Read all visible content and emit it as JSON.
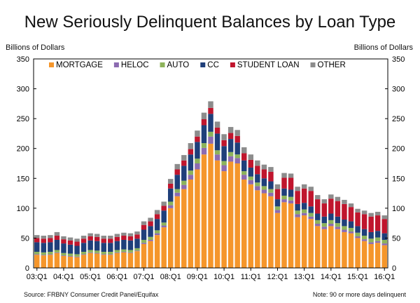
{
  "chart_data": {
    "type": "bar",
    "stacked": true,
    "title": "New Seriously Delinquent Balances by Loan Type",
    "ylabel_left": "Billions of Dollars",
    "ylabel_right": "Billions of Dollars",
    "ylim": [
      0,
      350
    ],
    "yticks": [
      0,
      50,
      100,
      150,
      200,
      250,
      300,
      350
    ],
    "grid": false,
    "legend_position": "top-left",
    "x_tick_labels": [
      "03:Q1",
      "04:Q1",
      "05:Q1",
      "06:Q1",
      "07:Q1",
      "08:Q1",
      "09:Q1",
      "10:Q1",
      "11:Q1",
      "12:Q1",
      "13:Q1",
      "14:Q1",
      "15:Q1",
      "16:Q1"
    ],
    "categories": [
      "03:Q1",
      "03:Q2",
      "03:Q3",
      "03:Q4",
      "04:Q1",
      "04:Q2",
      "04:Q3",
      "04:Q4",
      "05:Q1",
      "05:Q2",
      "05:Q3",
      "05:Q4",
      "06:Q1",
      "06:Q2",
      "06:Q3",
      "06:Q4",
      "07:Q1",
      "07:Q2",
      "07:Q3",
      "07:Q4",
      "08:Q1",
      "08:Q2",
      "08:Q3",
      "08:Q4",
      "09:Q1",
      "09:Q2",
      "09:Q3",
      "09:Q4",
      "10:Q1",
      "10:Q2",
      "10:Q3",
      "10:Q4",
      "11:Q1",
      "11:Q2",
      "11:Q3",
      "11:Q4",
      "12:Q1",
      "12:Q2",
      "12:Q3",
      "12:Q4",
      "13:Q1",
      "13:Q2",
      "13:Q3",
      "13:Q4",
      "14:Q1",
      "14:Q2",
      "14:Q3",
      "14:Q4",
      "15:Q1",
      "15:Q2",
      "15:Q3",
      "15:Q4",
      "16:Q1"
    ],
    "series": [
      {
        "name": "MORTGAGE",
        "color": "#f5962b",
        "values": [
          22,
          21,
          22,
          25,
          20,
          19,
          18,
          22,
          25,
          24,
          22,
          22,
          25,
          26,
          25,
          28,
          40,
          45,
          55,
          68,
          100,
          120,
          132,
          148,
          165,
          190,
          208,
          180,
          162,
          178,
          175,
          148,
          140,
          130,
          125,
          120,
          92,
          110,
          108,
          85,
          88,
          82,
          70,
          65,
          70,
          65,
          60,
          58,
          50,
          45,
          40,
          42,
          38
        ]
      },
      {
        "name": "HELOC",
        "color": "#8c6bb1",
        "values": [
          1,
          1,
          1,
          1,
          1,
          1,
          1,
          1,
          1,
          1,
          1,
          1,
          1,
          1,
          1,
          1,
          2,
          2,
          3,
          3,
          5,
          6,
          7,
          8,
          10,
          11,
          12,
          10,
          10,
          9,
          9,
          8,
          7,
          7,
          6,
          6,
          5,
          5,
          5,
          5,
          4,
          4,
          4,
          4,
          4,
          4,
          4,
          3,
          3,
          3,
          3,
          3,
          3
        ]
      },
      {
        "name": "AUTO",
        "color": "#8db35a",
        "values": [
          4,
          4,
          4,
          4,
          4,
          4,
          4,
          4,
          4,
          4,
          4,
          4,
          4,
          4,
          4,
          4,
          5,
          5,
          5,
          5,
          6,
          6,
          7,
          7,
          8,
          8,
          8,
          7,
          7,
          7,
          6,
          6,
          6,
          6,
          6,
          6,
          6,
          6,
          6,
          6,
          6,
          6,
          6,
          6,
          6,
          6,
          6,
          6,
          6,
          6,
          6,
          6,
          6
        ]
      },
      {
        "name": "CC",
        "color": "#1f3f7a",
        "values": [
          16,
          16,
          16,
          17,
          16,
          15,
          14,
          15,
          16,
          16,
          15,
          15,
          15,
          16,
          16,
          16,
          17,
          18,
          19,
          20,
          22,
          24,
          25,
          27,
          28,
          30,
          30,
          28,
          25,
          22,
          20,
          18,
          15,
          14,
          13,
          13,
          12,
          12,
          12,
          11,
          11,
          11,
          11,
          11,
          11,
          11,
          11,
          11,
          11,
          11,
          11,
          11,
          11
        ]
      },
      {
        "name": "STUDENT LOAN",
        "color": "#c0152d",
        "values": [
          7,
          7,
          7,
          7,
          7,
          7,
          7,
          7,
          7,
          7,
          7,
          7,
          7,
          7,
          7,
          7,
          8,
          8,
          8,
          8,
          8,
          9,
          9,
          9,
          9,
          10,
          10,
          10,
          10,
          10,
          11,
          12,
          13,
          14,
          15,
          16,
          17,
          18,
          20,
          22,
          24,
          26,
          24,
          22,
          25,
          26,
          26,
          24,
          23,
          25,
          26,
          26,
          24
        ]
      },
      {
        "name": "OTHER",
        "color": "#8c8c8c",
        "values": [
          5,
          5,
          5,
          6,
          5,
          5,
          5,
          5,
          5,
          5,
          5,
          5,
          5,
          5,
          5,
          5,
          6,
          6,
          7,
          7,
          8,
          9,
          9,
          10,
          10,
          11,
          11,
          10,
          10,
          10,
          10,
          10,
          9,
          9,
          8,
          8,
          8,
          8,
          7,
          7,
          7,
          7,
          7,
          7,
          7,
          7,
          7,
          6,
          6,
          6,
          6,
          6,
          6
        ]
      }
    ],
    "source": "Source: FRBNY Consumer Credit Panel/Equifax",
    "note": "Note:  90 or more days delinquent"
  }
}
